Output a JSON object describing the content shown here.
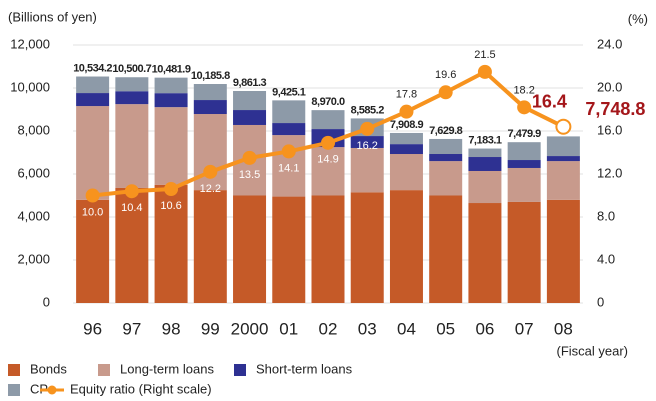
{
  "chart_data": {
    "type": "stacked-bar-line",
    "y_axis_label": "(Billions of yen)",
    "y2_axis_label": "(%)",
    "x_axis_label": "(Fiscal year)",
    "categories": [
      "96",
      "97",
      "98",
      "99",
      "2000",
      "01",
      "02",
      "03",
      "04",
      "05",
      "06",
      "07",
      "08"
    ],
    "series": [
      {
        "name": "Bonds",
        "color": "#c55a28",
        "values": [
          4800,
          5350,
          5500,
          5250,
          5000,
          4950,
          5000,
          5150,
          5250,
          5000,
          4650,
          4700,
          4800
        ]
      },
      {
        "name": "Long-term loans",
        "color": "#c89a8c",
        "values": [
          4360,
          3900,
          3610,
          3540,
          3280,
          2860,
          2250,
          2060,
          1680,
          1600,
          1490,
          1580,
          1800
        ]
      },
      {
        "name": "Short-term loans",
        "color": "#2e3192",
        "values": [
          605,
          600,
          650,
          650,
          695,
          560,
          840,
          555,
          460,
          330,
          650,
          370,
          235
        ]
      },
      {
        "name": "CP",
        "color": "#8d9aa8",
        "values": [
          769.2,
          650.7,
          721.9,
          745.8,
          886.3,
          1055.1,
          880,
          820.2,
          518.9,
          699.8,
          393.1,
          829.9,
          913.8
        ]
      },
      {
        "name": "Equity ratio (Right scale)",
        "color": "#f7931e",
        "axis": "y2",
        "values": [
          10.0,
          10.4,
          10.6,
          12.2,
          13.5,
          14.1,
          14.9,
          16.2,
          17.8,
          19.6,
          21.5,
          18.2,
          16.4
        ],
        "value_labels": [
          "10.0",
          "10.4",
          "10.6",
          "12.2",
          "13.5",
          "14.1",
          "14.9",
          "16.2",
          "17.8",
          "19.6",
          "21.5",
          "18.2",
          "16.4"
        ]
      }
    ],
    "totals": [
      10534.2,
      10500.7,
      10481.9,
      10185.8,
      9861.3,
      9425.1,
      8970.0,
      8585.2,
      7908.9,
      7629.8,
      7183.1,
      7479.9,
      7748.8
    ],
    "totals_labels": [
      "10,534.2",
      "10,500.7",
      "10,481.9",
      "10,185.8",
      "9,861.3",
      "9,425.1",
      "8,970.0",
      "8,585.2",
      "7,908.9",
      "7,629.8",
      "7,183.1",
      "7,479.9",
      "7,748.8"
    ],
    "ylim": [
      0,
      12000
    ],
    "yticks": [
      0,
      {
        "value": 2000,
        "label": "2,000"
      },
      {
        "value": 4000,
        "label": "4,000"
      },
      {
        "value": 6000,
        "label": "6,000"
      },
      {
        "value": 8000,
        "label": "8,000"
      },
      {
        "value": 10000,
        "label": "10,000"
      },
      {
        "value": 12000,
        "label": "12,000"
      }
    ],
    "y2lim": [
      0,
      24
    ],
    "y2ticks": [
      0,
      {
        "value": 4,
        "label": "4.0"
      },
      {
        "value": 8,
        "label": "8.0"
      },
      {
        "value": 12,
        "label": "12.0"
      },
      {
        "value": 16,
        "label": "16.0"
      },
      {
        "value": 20,
        "label": "20.0"
      },
      {
        "value": 24,
        "label": "24.0"
      }
    ],
    "grid": true,
    "legend": "bottom-left"
  }
}
